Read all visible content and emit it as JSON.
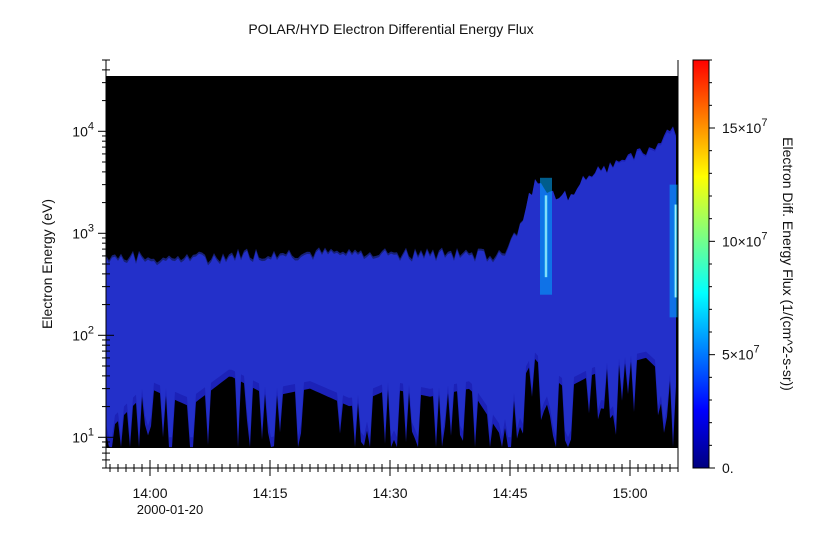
{
  "chart_data": {
    "type": "heatmap",
    "title": "POLAR/HYD  Electron Differential Energy Flux",
    "xlabel": "",
    "ylabel": "Electron Energy (eV)",
    "colorbar_label": "Electron Diff. Energy Flux (1/(cm^2-s-sr))",
    "x_ticks": [
      {
        "label": "14:00",
        "minutes": 0
      },
      {
        "label": "14:15",
        "minutes": 15
      },
      {
        "label": "14:30",
        "minutes": 30
      },
      {
        "label": "14:45",
        "minutes": 45
      },
      {
        "label": "15:00",
        "minutes": 60
      }
    ],
    "x_date_label": "2000-01-20",
    "x_range": [
      "13:54",
      "15:06"
    ],
    "y_scale": "log",
    "y_range": [
      5,
      50000
    ],
    "y_ticks": [
      {
        "base": "10",
        "exp": "1",
        "value": 10
      },
      {
        "base": "10",
        "exp": "2",
        "value": 100
      },
      {
        "base": "10",
        "exp": "3",
        "value": 1000
      },
      {
        "base": "10",
        "exp": "4",
        "value": 10000
      }
    ],
    "colorbar_range": [
      0,
      180000000
    ],
    "colorbar_ticks": [
      {
        "base": "0.",
        "exp": "",
        "value": 0
      },
      {
        "base": "5×10",
        "exp": "7",
        "value": 50000000
      },
      {
        "base": "10×10",
        "exp": "7",
        "value": 100000000
      },
      {
        "base": "15×10",
        "exp": "7",
        "value": 150000000
      }
    ],
    "colormap": [
      "#00007f",
      "#0000ff",
      "#007fff",
      "#00ffff",
      "#7fff7f",
      "#ffff00",
      "#ff7f00",
      "#ff0000"
    ],
    "background_color": "#000000",
    "band": {
      "minutes": [
        -6,
        0,
        5,
        10,
        15,
        20,
        25,
        30,
        35,
        40,
        44,
        46,
        48,
        50,
        52,
        55,
        58,
        62,
        66
      ],
      "upper_energy_eV": [
        580,
        560,
        540,
        600,
        620,
        620,
        620,
        620,
        610,
        600,
        600,
        1100,
        3000,
        2500,
        2300,
        3800,
        4800,
        6500,
        11000
      ],
      "lower_energy_eV": [
        10,
        30,
        20,
        40,
        25,
        30,
        20,
        30,
        25,
        30,
        10,
        30,
        60,
        40,
        30,
        40,
        50,
        60,
        30
      ]
    },
    "bright_streaks": [
      {
        "minute": 49.5,
        "energy_low_eV": 250,
        "energy_high_eV": 3500,
        "peak_flux": 75000000
      },
      {
        "minute": 65.7,
        "energy_low_eV": 150,
        "energy_high_eV": 3000,
        "peak_flux": 35000000
      }
    ]
  }
}
